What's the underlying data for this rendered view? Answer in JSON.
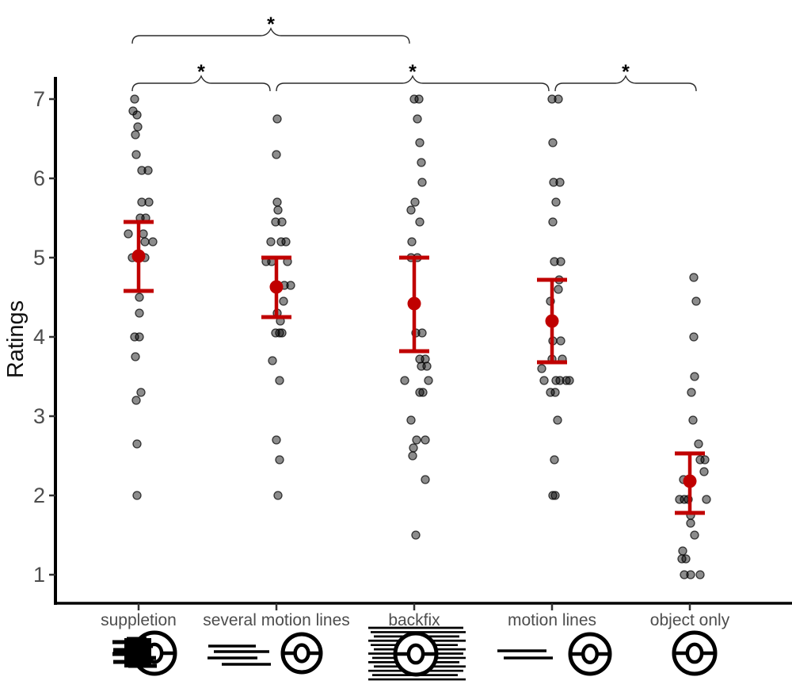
{
  "chart_data": {
    "type": "scatter",
    "subtype": "jittered strip plot with mean and confidence-interval error bars",
    "ylabel": "Ratings",
    "ylim": [
      1,
      7
    ],
    "yticks": [
      7,
      6,
      5,
      4,
      3,
      2,
      1
    ],
    "grid": "off",
    "colors": {
      "error_bar": "#c00000",
      "point": "#000000",
      "point_opacity": 0.45,
      "axis": "#000000",
      "axis_text": "#4d4d4d"
    },
    "categories": [
      {
        "label": "suppletion",
        "icon": "suppletion-icon",
        "mean": 5.02,
        "ci_low": 4.58,
        "ci_high": 5.45,
        "points": [
          [
            -5,
            7.0
          ],
          [
            -7,
            6.85
          ],
          [
            -2,
            6.8
          ],
          [
            -1,
            6.65
          ],
          [
            -4,
            6.55
          ],
          [
            -3,
            6.3
          ],
          [
            4,
            6.1
          ],
          [
            12,
            6.1
          ],
          [
            4,
            5.7
          ],
          [
            13,
            5.7
          ],
          [
            2,
            5.5
          ],
          [
            9,
            5.5
          ],
          [
            -13,
            5.3
          ],
          [
            6,
            5.3
          ],
          [
            8,
            5.2
          ],
          [
            18,
            5.2
          ],
          [
            -8,
            5.0
          ],
          [
            8,
            5.0
          ],
          [
            1,
            4.5
          ],
          [
            1,
            4.3
          ],
          [
            -5,
            4.0
          ],
          [
            1,
            4.0
          ],
          [
            -4,
            3.75
          ],
          [
            3,
            3.3
          ],
          [
            -3,
            3.2
          ],
          [
            -2,
            2.65
          ],
          [
            -2,
            2.0
          ]
        ]
      },
      {
        "label": "several motion lines",
        "icon": "several-motion-lines-icon",
        "mean": 4.63,
        "ci_low": 4.25,
        "ci_high": 5.0,
        "points": [
          [
            1,
            6.75
          ],
          [
            0,
            6.3
          ],
          [
            1,
            5.7
          ],
          [
            2,
            5.6
          ],
          [
            -1,
            5.45
          ],
          [
            7,
            5.45
          ],
          [
            -7,
            5.2
          ],
          [
            6,
            5.2
          ],
          [
            12,
            5.2
          ],
          [
            -13,
            4.95
          ],
          [
            -6,
            4.95
          ],
          [
            14,
            4.95
          ],
          [
            10,
            4.65
          ],
          [
            18,
            4.65
          ],
          [
            9,
            4.45
          ],
          [
            1,
            4.3
          ],
          [
            5,
            4.2
          ],
          [
            -1,
            4.05
          ],
          [
            4,
            4.05
          ],
          [
            7,
            4.05
          ],
          [
            -5,
            3.7
          ],
          [
            4,
            3.45
          ],
          [
            0,
            2.7
          ],
          [
            4,
            2.45
          ],
          [
            2,
            2.0
          ]
        ]
      },
      {
        "label": "backfix",
        "icon": "backfix-icon",
        "mean": 4.42,
        "ci_low": 3.82,
        "ci_high": 5.0,
        "points": [
          [
            0,
            7.0
          ],
          [
            6,
            7.0
          ],
          [
            4,
            6.75
          ],
          [
            7,
            6.45
          ],
          [
            9,
            6.2
          ],
          [
            10,
            5.95
          ],
          [
            1,
            5.7
          ],
          [
            -4,
            5.6
          ],
          [
            7,
            5.45
          ],
          [
            -3,
            5.2
          ],
          [
            -4,
            5.0
          ],
          [
            4,
            5.0
          ],
          [
            2,
            4.05
          ],
          [
            10,
            4.05
          ],
          [
            7,
            3.72
          ],
          [
            14,
            3.72
          ],
          [
            9,
            3.63
          ],
          [
            16,
            3.63
          ],
          [
            -12,
            3.45
          ],
          [
            18,
            3.45
          ],
          [
            7,
            3.3
          ],
          [
            11,
            3.3
          ],
          [
            -4,
            2.95
          ],
          [
            3,
            2.7
          ],
          [
            14,
            2.7
          ],
          [
            -1,
            2.6
          ],
          [
            -2,
            2.5
          ],
          [
            14,
            2.2
          ],
          [
            2,
            1.5
          ]
        ]
      },
      {
        "label": "motion lines",
        "icon": "motion-lines-icon",
        "mean": 4.2,
        "ci_low": 3.68,
        "ci_high": 4.72,
        "points": [
          [
            0,
            7.0
          ],
          [
            8,
            7.0
          ],
          [
            1,
            6.45
          ],
          [
            2,
            5.95
          ],
          [
            10,
            5.95
          ],
          [
            5,
            5.7
          ],
          [
            1,
            5.45
          ],
          [
            3,
            4.95
          ],
          [
            11,
            4.95
          ],
          [
            9,
            4.72
          ],
          [
            8,
            4.6
          ],
          [
            -2,
            4.45
          ],
          [
            1,
            3.95
          ],
          [
            11,
            3.95
          ],
          [
            0,
            3.72
          ],
          [
            13,
            3.72
          ],
          [
            -13,
            3.6
          ],
          [
            -10,
            3.45
          ],
          [
            5,
            3.45
          ],
          [
            10,
            3.45
          ],
          [
            18,
            3.45
          ],
          [
            22,
            3.45
          ],
          [
            -2,
            3.3
          ],
          [
            4,
            3.3
          ],
          [
            7,
            2.95
          ],
          [
            3,
            2.45
          ],
          [
            1,
            2.0
          ],
          [
            4,
            2.0
          ]
        ]
      },
      {
        "label": "object only",
        "icon": "object-only-icon",
        "mean": 2.18,
        "ci_low": 1.78,
        "ci_high": 2.53,
        "points": [
          [
            5,
            4.75
          ],
          [
            8,
            4.45
          ],
          [
            5,
            4.0
          ],
          [
            6,
            3.5
          ],
          [
            2,
            3.3
          ],
          [
            4,
            2.95
          ],
          [
            11,
            2.65
          ],
          [
            13,
            2.45
          ],
          [
            19,
            2.45
          ],
          [
            18,
            2.3
          ],
          [
            -8,
            2.2
          ],
          [
            1,
            2.2
          ],
          [
            -13,
            1.95
          ],
          [
            -7,
            1.95
          ],
          [
            -2,
            1.95
          ],
          [
            21,
            1.95
          ],
          [
            1,
            1.75
          ],
          [
            1,
            1.65
          ],
          [
            6,
            1.5
          ],
          [
            -9,
            1.3
          ],
          [
            -10,
            1.2
          ],
          [
            -5,
            1.2
          ],
          [
            -7,
            1.0
          ],
          [
            1,
            1.0
          ],
          [
            13,
            1.0
          ]
        ]
      }
    ],
    "significance_brackets": [
      {
        "from": "suppletion",
        "to": "backfix",
        "a": 0,
        "b": 2,
        "row": 1,
        "label": "*"
      },
      {
        "from": "suppletion",
        "to": "several motion lines",
        "a": 0,
        "b": 1,
        "row": 2,
        "label": "*"
      },
      {
        "from": "several motion lines",
        "to": "motion lines",
        "a": 1,
        "b": 3,
        "row": 2,
        "label": "*"
      },
      {
        "from": "motion lines",
        "to": "object only",
        "a": 3,
        "b": 4,
        "row": 2,
        "label": "*"
      }
    ]
  }
}
